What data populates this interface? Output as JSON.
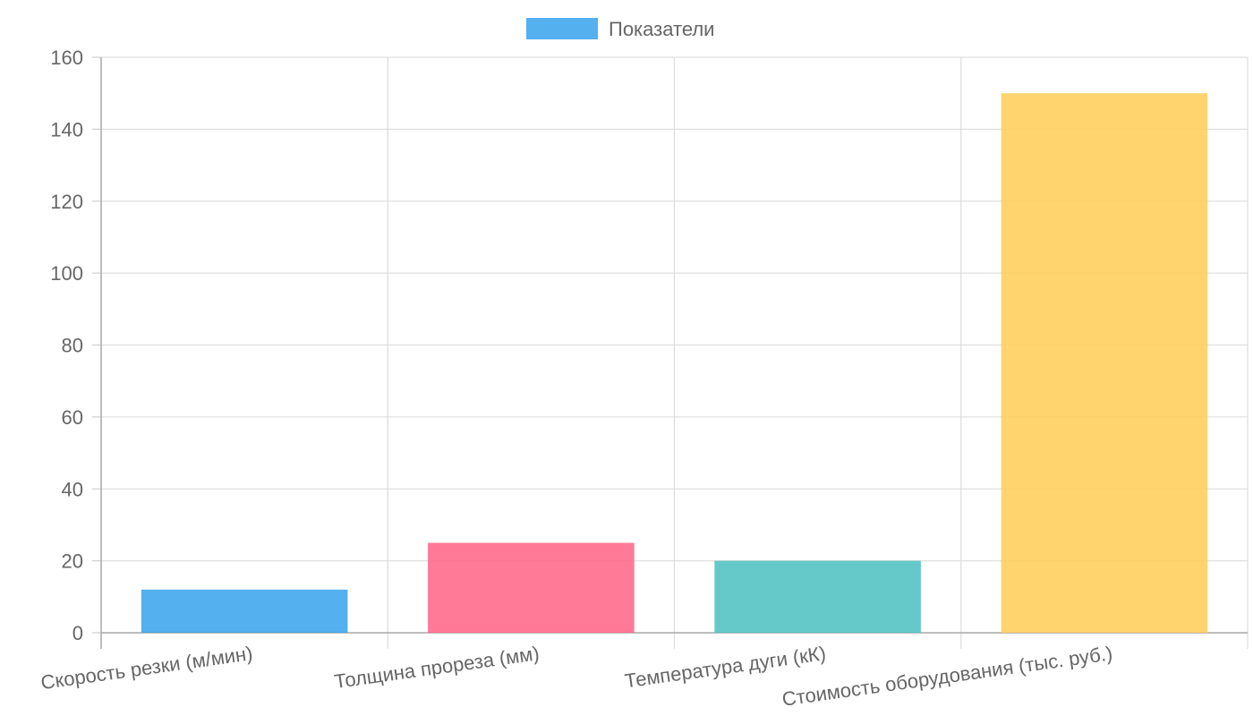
{
  "chart_data": {
    "type": "bar",
    "categories": [
      "Скорость резки (м/мин)",
      "Толщина прореза (мм)",
      "Температура дуги (кК)",
      "Стоимость оборудования (тыс. руб.)"
    ],
    "series": [
      {
        "name": "Показатели",
        "values": [
          12,
          25,
          20,
          150
        ]
      }
    ],
    "bar_colors": [
      "#36a2eb",
      "#ff6384",
      "#4bc0c0",
      "#ffcd56"
    ],
    "legend_color": "#36a2eb",
    "legend_position": "top",
    "ylim": [
      0,
      160
    ],
    "yticks": [
      0,
      20,
      40,
      60,
      80,
      100,
      120,
      140,
      160
    ],
    "ytick_labels": [
      "0",
      "20",
      "40",
      "60",
      "80",
      "100",
      "120",
      "140",
      "160"
    ],
    "grid": true,
    "title": "",
    "xlabel": "",
    "ylabel": ""
  }
}
